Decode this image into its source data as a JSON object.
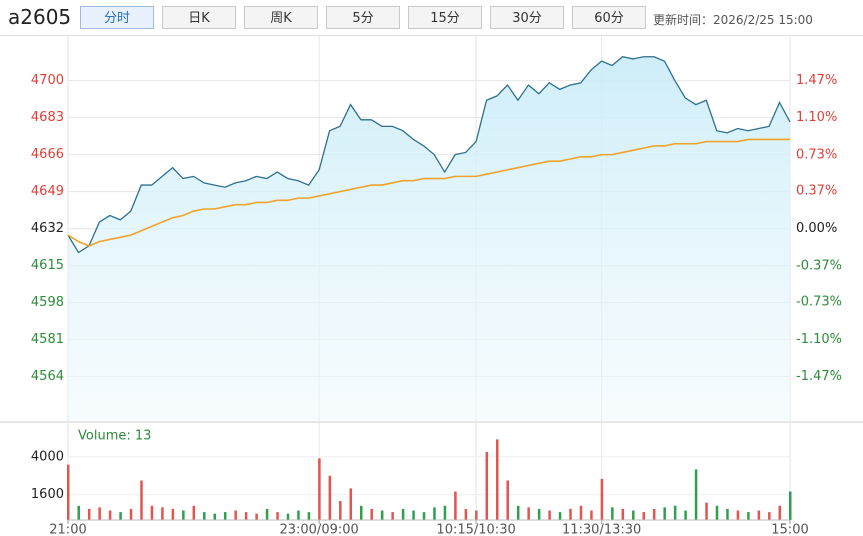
{
  "toolbar": {
    "symbol": "a2605",
    "tabs": [
      "分时",
      "日K",
      "周K",
      "5分",
      "15分",
      "30分",
      "60分"
    ],
    "active": 0,
    "update_time": "更新时间：2026/2/25 15:00"
  },
  "chart_data": [
    {
      "type": "line",
      "x": [
        0,
        5,
        10,
        15,
        20,
        25,
        30,
        35,
        40,
        45,
        50,
        55,
        60,
        65,
        70,
        75,
        80,
        85,
        90,
        95,
        100,
        105,
        110,
        115,
        120,
        125,
        130,
        135,
        140,
        145,
        150,
        155,
        160,
        165,
        170,
        175,
        180,
        185,
        190,
        195,
        200,
        205,
        210,
        215,
        220,
        225,
        230,
        235,
        240,
        245,
        250,
        255,
        260,
        265,
        270,
        275,
        280,
        285,
        290,
        295,
        300,
        305,
        310,
        315,
        320,
        325,
        330,
        335,
        340,
        345
      ],
      "xlim": [
        0,
        345
      ],
      "ylim": [
        4544,
        4721
      ],
      "yticks": [
        4700,
        4683,
        4666,
        4649,
        4632,
        4615,
        4598,
        4581,
        4564
      ],
      "y2lim": [
        -1.9,
        1.92
      ],
      "y2ticks": [
        {
          "value": 1.47,
          "label": "1.47%"
        },
        {
          "value": 1.1,
          "label": "1.10%"
        },
        {
          "value": 0.73,
          "label": "0.73%"
        },
        {
          "value": 0.37,
          "label": "0.37%"
        },
        {
          "value": 0.0,
          "label": "0.00%"
        },
        {
          "value": -0.37,
          "label": "-0.37%"
        },
        {
          "value": -0.73,
          "label": "-0.73%"
        },
        {
          "value": -1.1,
          "label": "-1.10%"
        },
        {
          "value": -1.47,
          "label": "-1.47%"
        }
      ],
      "grid": true,
      "series": [
        {
          "color": "#2e6f8f",
          "fill": true,
          "values": [
            4629,
            4621,
            4624,
            4635,
            4638,
            4636,
            4640,
            4652,
            4652,
            4656,
            4660,
            4655,
            4656,
            4653,
            4652,
            4651,
            4653,
            4654,
            4656,
            4655,
            4658,
            4655,
            4654,
            4652,
            4659,
            4677,
            4679,
            4689,
            4682,
            4682,
            4679,
            4679,
            4677,
            4673,
            4670,
            4666,
            4658,
            4666,
            4667,
            4672,
            4691,
            4693,
            4698,
            4691,
            4698,
            4694,
            4699,
            4696,
            4698,
            4699,
            4705,
            4709,
            4707,
            4711,
            4710,
            4711,
            4711,
            4709,
            4700,
            4692,
            4689,
            4691,
            4677,
            4676,
            4678,
            4677,
            4678,
            4679,
            4690,
            4681
          ]
        },
        {
          "color": "#f0a32a",
          "fill": false,
          "values": [
            4629,
            4626,
            4624,
            4626,
            4627,
            4628,
            4629,
            4631,
            4633,
            4635,
            4637,
            4638,
            4640,
            4641,
            4641,
            4642,
            4643,
            4643,
            4644,
            4644,
            4645,
            4645,
            4646,
            4646,
            4647,
            4648,
            4649,
            4650,
            4651,
            4652,
            4652,
            4653,
            4654,
            4654,
            4655,
            4655,
            4655,
            4656,
            4656,
            4656,
            4657,
            4658,
            4659,
            4660,
            4661,
            4662,
            4663,
            4663,
            4664,
            4665,
            4665,
            4666,
            4666,
            4667,
            4668,
            4669,
            4670,
            4670,
            4671,
            4671,
            4671,
            4672,
            4672,
            4672,
            4672,
            4673,
            4673,
            4673,
            4673,
            4673
          ]
        }
      ]
    },
    {
      "type": "bar",
      "annotation": "Volume: 13",
      "x": [
        0,
        5,
        10,
        15,
        20,
        25,
        30,
        35,
        40,
        45,
        50,
        55,
        60,
        65,
        70,
        75,
        80,
        85,
        90,
        95,
        100,
        105,
        110,
        115,
        120,
        125,
        130,
        135,
        140,
        145,
        150,
        155,
        160,
        165,
        170,
        175,
        180,
        185,
        190,
        195,
        200,
        205,
        210,
        215,
        220,
        225,
        230,
        235,
        240,
        245,
        250,
        255,
        260,
        265,
        270,
        275,
        280,
        285,
        290,
        295,
        300,
        305,
        310,
        315,
        320,
        325,
        330,
        335,
        340,
        345
      ],
      "xlim": [
        0,
        345
      ],
      "xticks": [
        {
          "value": 0,
          "label": "21:00"
        },
        {
          "value": 120,
          "label": "23:00/09:00"
        },
        {
          "value": 195,
          "label": "10:15/10:30"
        },
        {
          "value": 255,
          "label": "11:30/13:30"
        },
        {
          "value": 345,
          "label": "15:00"
        }
      ],
      "ylim": [
        0,
        6200
      ],
      "yticks": [
        1600,
        4000
      ],
      "up_color": "#e0554f",
      "down_color": "#2e9e4f",
      "values": [
        3500,
        900,
        700,
        800,
        600,
        500,
        700,
        2500,
        900,
        800,
        700,
        600,
        900,
        500,
        400,
        500,
        600,
        500,
        400,
        700,
        500,
        400,
        600,
        500,
        3900,
        2800,
        1200,
        2000,
        900,
        700,
        600,
        500,
        700,
        600,
        500,
        800,
        900,
        1800,
        700,
        600,
        4300,
        5100,
        2500,
        900,
        800,
        700,
        600,
        500,
        700,
        900,
        600,
        2600,
        800,
        700,
        600,
        500,
        700,
        800,
        900,
        600,
        3200,
        1100,
        900,
        700,
        600,
        500,
        600,
        500,
        900,
        1800
      ]
    }
  ]
}
